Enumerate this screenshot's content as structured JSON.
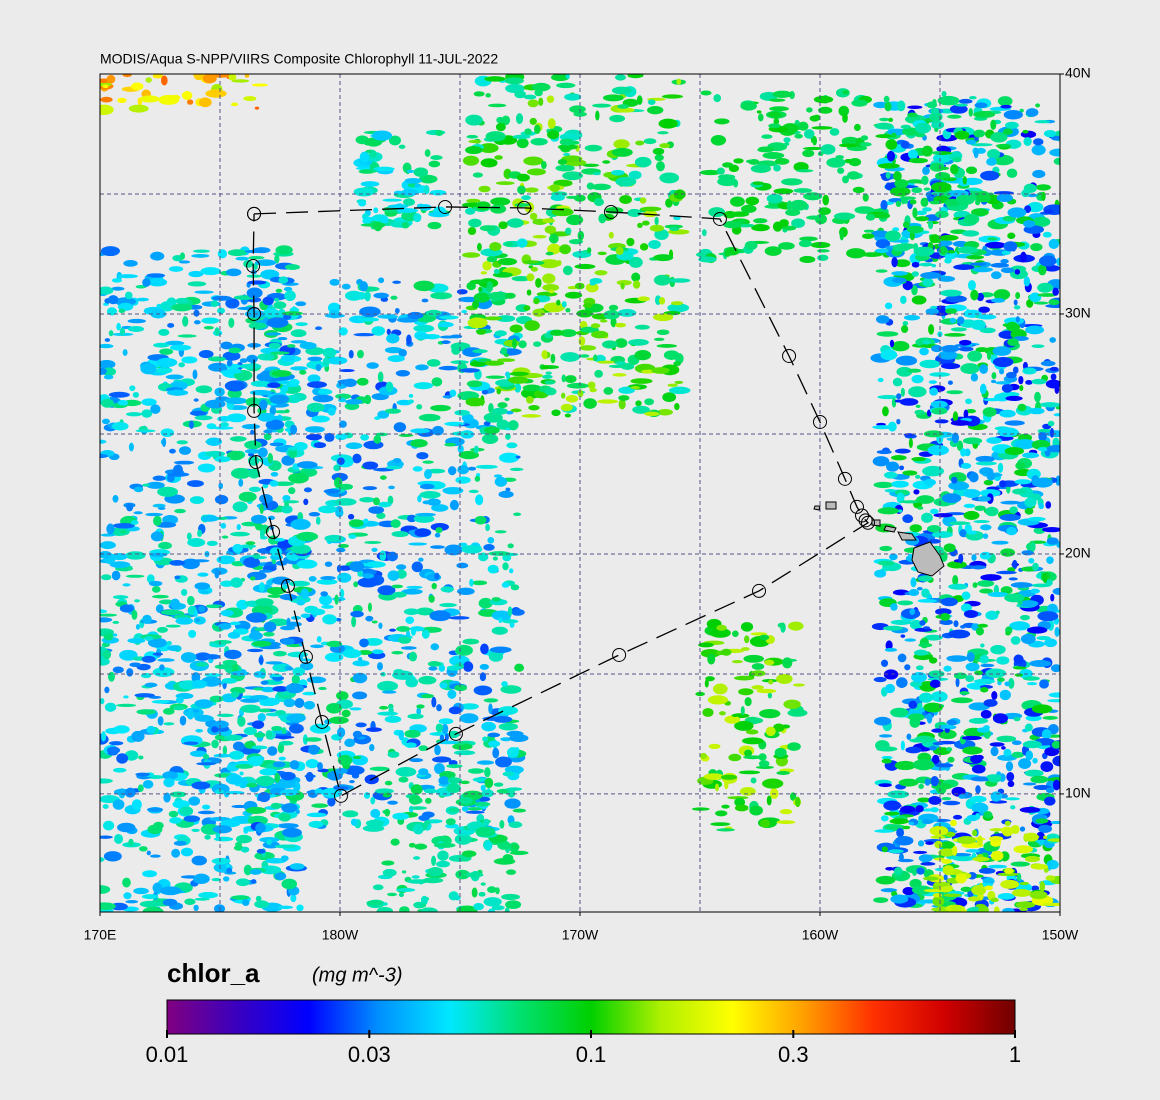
{
  "chart_data": {
    "type": "map",
    "title": "MODIS/Aqua S-NPP/VIIRS Composite Chlorophyll 11-JUL-2022",
    "xlim": [
      170,
      210
    ],
    "ylim": [
      5.08,
      40
    ],
    "xticks": [
      {
        "value": 170,
        "label": "170E"
      },
      {
        "value": 180,
        "label": "180W"
      },
      {
        "value": 190,
        "label": "170W"
      },
      {
        "value": 200,
        "label": "160W"
      },
      {
        "value": 210,
        "label": "150W"
      }
    ],
    "yticks": [
      {
        "value": 10,
        "label": "10N"
      },
      {
        "value": 20,
        "label": "20N"
      },
      {
        "value": 30,
        "label": "30N"
      },
      {
        "value": 40,
        "label": "40N"
      }
    ],
    "xgrid": [
      175,
      180,
      185,
      190,
      195,
      200,
      205
    ],
    "ygrid": [
      10,
      15,
      20,
      25,
      30,
      35
    ],
    "track": {
      "lon": [
        176.42,
        184.38,
        187.67,
        191.29,
        195.83,
        198.71,
        200.0,
        201.04,
        201.54,
        201.75,
        201.9,
        202.0,
        197.46,
        191.63,
        184.83,
        180.04,
        179.25,
        178.58,
        177.83,
        177.21,
        176.5,
        176.42,
        176.42,
        176.38,
        176.42
      ],
      "lat": [
        34.17,
        34.46,
        34.42,
        34.25,
        33.96,
        28.25,
        25.5,
        23.13,
        21.96,
        21.6,
        21.4,
        21.3,
        18.46,
        15.79,
        12.5,
        9.92,
        13.0,
        15.71,
        18.67,
        20.92,
        23.83,
        25.96,
        30.0,
        32.0,
        34.17
      ]
    },
    "colorbar": {
      "variable": "chlor_a",
      "units": "(mg m^-3)",
      "log": true,
      "clim": [
        0.01,
        1
      ],
      "ticks": [
        0.01,
        0.03,
        0.1,
        0.3,
        1
      ],
      "colormap": [
        "#800080",
        "#3a00c0",
        "#0000ff",
        "#0090ff",
        "#00e8ff",
        "#00e070",
        "#00d000",
        "#b0f000",
        "#ffff00",
        "#ffa000",
        "#ff3000",
        "#d00000",
        "#700000"
      ]
    }
  }
}
